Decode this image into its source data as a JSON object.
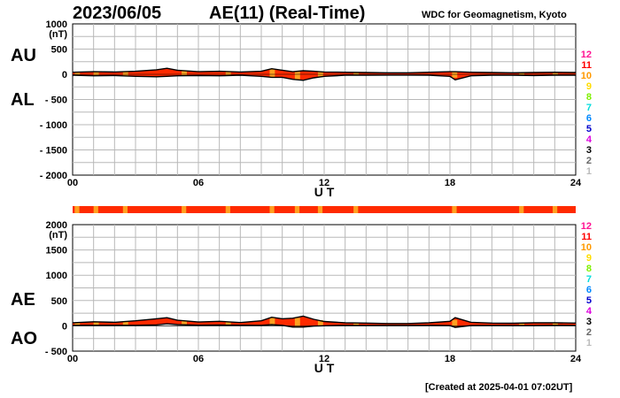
{
  "header": {
    "date": "2023/06/05",
    "title": "AE(11) (Real-Time)",
    "credit": "WDC for Geomagnetism, Kyoto"
  },
  "footer": {
    "created": "[Created at 2025-04-01 07:02UT]"
  },
  "side_labels": {
    "au": "AU",
    "al": "AL",
    "ae": "AE",
    "ao": "AO"
  },
  "colors": {
    "fill": "#ff2a00",
    "outline": "#000000",
    "patch": "#ffa020",
    "status_bar": "#ff2a00",
    "status_patch": "#ffa020",
    "grid": "#b8b8b8"
  },
  "station_scale": [
    {
      "label": "12",
      "color": "#ff1493"
    },
    {
      "label": "11",
      "color": "#ff0000"
    },
    {
      "label": "10",
      "color": "#ff9900"
    },
    {
      "label": "9",
      "color": "#ffdd00"
    },
    {
      "label": "8",
      "color": "#7ff000"
    },
    {
      "label": "7",
      "color": "#00dddd"
    },
    {
      "label": "6",
      "color": "#0088ff"
    },
    {
      "label": "5",
      "color": "#0000cc"
    },
    {
      "label": "4",
      "color": "#dd00dd"
    },
    {
      "label": "3",
      "color": "#000000"
    },
    {
      "label": "2",
      "color": "#666666"
    },
    {
      "label": "1",
      "color": "#bbbbbb"
    }
  ],
  "chart_data": [
    {
      "type": "area",
      "panel": "AU/AL",
      "unit_label": "(nT)",
      "xlabel": "U T",
      "xlim": [
        0,
        24
      ],
      "ylim": [
        -2000,
        1000
      ],
      "yticks": [
        1000,
        500,
        0,
        -500,
        -1000,
        -1500,
        -2000
      ],
      "ytick_labels": [
        "1000",
        "500",
        "0",
        "- 500",
        "- 1000",
        "- 1500",
        "- 2000"
      ],
      "xticks": [
        0,
        6,
        12,
        18,
        24
      ],
      "xtick_labels": [
        "00",
        "06",
        "12",
        "18",
        "24"
      ],
      "grid": true,
      "x": [
        0,
        1,
        2,
        3,
        4,
        4.5,
        5,
        6,
        7,
        8,
        9,
        9.5,
        10,
        10.5,
        11,
        11.5,
        12,
        13,
        14,
        15,
        16,
        17,
        18,
        18.25,
        19,
        20,
        21,
        22,
        23,
        24
      ],
      "series": [
        {
          "name": "AU",
          "values": [
            40,
            50,
            45,
            60,
            90,
            120,
            80,
            50,
            60,
            45,
            60,
            110,
            80,
            50,
            70,
            60,
            45,
            40,
            35,
            30,
            30,
            40,
            50,
            50,
            40,
            35,
            30,
            35,
            40,
            35
          ]
        },
        {
          "name": "AL",
          "values": [
            -20,
            -30,
            -25,
            -40,
            -50,
            -40,
            -30,
            -25,
            -30,
            -20,
            -40,
            -60,
            -60,
            -100,
            -120,
            -70,
            -40,
            -20,
            -20,
            -15,
            -15,
            -20,
            -40,
            -110,
            -30,
            -20,
            -20,
            -25,
            -20,
            -20
          ]
        }
      ]
    },
    {
      "type": "area",
      "panel": "AE/AO",
      "unit_label": "(nT)",
      "xlabel": "U T",
      "xlim": [
        0,
        24
      ],
      "ylim": [
        -500,
        2000
      ],
      "yticks": [
        2000,
        1500,
        1000,
        500,
        0,
        -500
      ],
      "ytick_labels": [
        "2000",
        "1500",
        "1000",
        "500",
        "0",
        "- 500"
      ],
      "xticks": [
        0,
        6,
        12,
        18,
        24
      ],
      "xtick_labels": [
        "00",
        "06",
        "12",
        "18",
        "24"
      ],
      "grid": true,
      "x": [
        0,
        1,
        2,
        3,
        4,
        4.5,
        5,
        6,
        7,
        8,
        9,
        9.5,
        10,
        10.5,
        11,
        11.5,
        12,
        13,
        14,
        15,
        16,
        17,
        18,
        18.25,
        19,
        20,
        21,
        22,
        23,
        24
      ],
      "series": [
        {
          "name": "AE",
          "values": [
            60,
            80,
            70,
            100,
            140,
            160,
            110,
            75,
            90,
            65,
            100,
            170,
            140,
            150,
            190,
            130,
            85,
            60,
            55,
            45,
            45,
            60,
            90,
            160,
            70,
            55,
            50,
            60,
            60,
            55
          ]
        },
        {
          "name": "AO",
          "values": [
            10,
            10,
            10,
            10,
            20,
            40,
            25,
            12,
            15,
            12,
            10,
            25,
            10,
            -25,
            -25,
            -5,
            2,
            10,
            8,
            8,
            8,
            10,
            5,
            -30,
            5,
            8,
            5,
            5,
            10,
            8
          ]
        }
      ]
    }
  ]
}
